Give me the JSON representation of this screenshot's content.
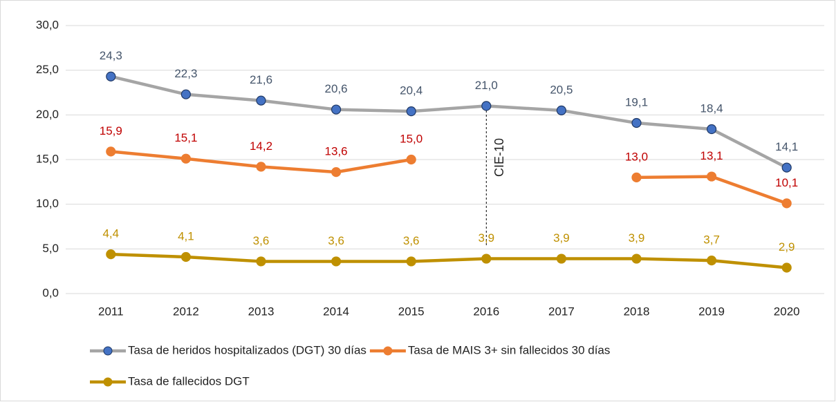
{
  "chart_data": {
    "type": "line",
    "categories": [
      "2011",
      "2012",
      "2013",
      "2014",
      "2015",
      "2016",
      "2017",
      "2018",
      "2019",
      "2020"
    ],
    "series": [
      {
        "name": "Tasa de heridos hospitalizados (DGT) 30 días",
        "color": "#a5a5a5",
        "marker_color": "#4472c4",
        "label_color": "#44546a",
        "values": [
          24.3,
          22.3,
          21.6,
          20.6,
          20.4,
          21.0,
          20.5,
          19.1,
          18.4,
          14.1
        ],
        "value_labels": [
          "24,3",
          "22,3",
          "21,6",
          "20,6",
          "20,4",
          "21,0",
          "20,5",
          "19,1",
          "18,4",
          "14,1"
        ]
      },
      {
        "name": "Tasa de MAIS 3+ sin fallecidos 30 días",
        "color": "#ed7d31",
        "marker_color": "#ed7d31",
        "label_color": "#c00000",
        "values": [
          15.9,
          15.1,
          14.2,
          13.6,
          15.0,
          null,
          null,
          13.0,
          13.1,
          10.1
        ],
        "value_labels": [
          "15,9",
          "15,1",
          "14,2",
          "13,6",
          "15,0",
          null,
          null,
          "13,0",
          "13,1",
          "10,1"
        ]
      },
      {
        "name": "Tasa de fallecidos DGT",
        "color": "#bf9000",
        "marker_color": "#bf9000",
        "label_color": "#bf9000",
        "values": [
          4.4,
          4.1,
          3.6,
          3.6,
          3.6,
          3.9,
          3.9,
          3.9,
          3.7,
          2.9
        ],
        "value_labels": [
          "4,4",
          "4,1",
          "3,6",
          "3,6",
          "3,6",
          "3,9",
          "3,9",
          "3,9",
          "3,7",
          "2,9"
        ]
      }
    ],
    "ylim": [
      0,
      30
    ],
    "yticks": [
      {
        "value": 0,
        "label": "0,0"
      },
      {
        "value": 5,
        "label": "5,0"
      },
      {
        "value": 10,
        "label": "10,0"
      },
      {
        "value": 15,
        "label": "15,0"
      },
      {
        "value": 20,
        "label": "20,0"
      },
      {
        "value": 25,
        "label": "25,0"
      },
      {
        "value": 30,
        "label": "30,0"
      }
    ],
    "grid": true,
    "legend": "bottom",
    "annotations": [
      {
        "text": "CIE-10",
        "x": "2016"
      }
    ]
  }
}
